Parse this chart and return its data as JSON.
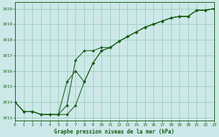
{
  "title": "Graphe pression niveau de la mer (hPa)",
  "bg_color": "#cce8e8",
  "grid_color": "#99ccbb",
  "line_color": "#1a5e1a",
  "marker_color": "#1a5e1a",
  "ylim": [
    1012.8,
    1020.4
  ],
  "xlim": [
    0,
    23
  ],
  "yticks": [
    1013,
    1014,
    1015,
    1016,
    1017,
    1018,
    1019,
    1020
  ],
  "xticks": [
    0,
    1,
    2,
    3,
    4,
    5,
    6,
    7,
    8,
    9,
    10,
    11,
    12,
    13,
    14,
    15,
    16,
    17,
    18,
    19,
    20,
    21,
    22,
    23
  ],
  "series": [
    [
      1014.0,
      1013.4,
      1013.4,
      1013.2,
      1013.2,
      1013.2,
      1013.2,
      1013.8,
      1015.3,
      1016.5,
      1017.3,
      1017.5,
      1017.9,
      1018.2,
      1018.5,
      1018.8,
      1019.0,
      1019.2,
      1019.4,
      1019.5,
      1019.5,
      1019.9,
      1019.9,
      1020.0
    ],
    [
      1014.0,
      1013.4,
      1013.4,
      1013.2,
      1013.2,
      1013.2,
      1013.8,
      1016.7,
      1017.3,
      1017.3,
      1017.5,
      1017.5,
      1017.9,
      1018.2,
      1018.5,
      1018.8,
      1019.0,
      1019.2,
      1019.4,
      1019.5,
      1019.5,
      1019.9,
      1019.9,
      1020.0
    ],
    [
      1014.0,
      1013.4,
      1013.4,
      1013.2,
      1013.2,
      1013.2,
      1015.3,
      1016.0,
      1015.3,
      1016.5,
      1017.3,
      1017.5,
      1017.9,
      1018.2,
      1018.5,
      1018.8,
      1019.0,
      1019.2,
      1019.4,
      1019.5,
      1019.5,
      1019.9,
      1019.9,
      1020.0
    ]
  ]
}
